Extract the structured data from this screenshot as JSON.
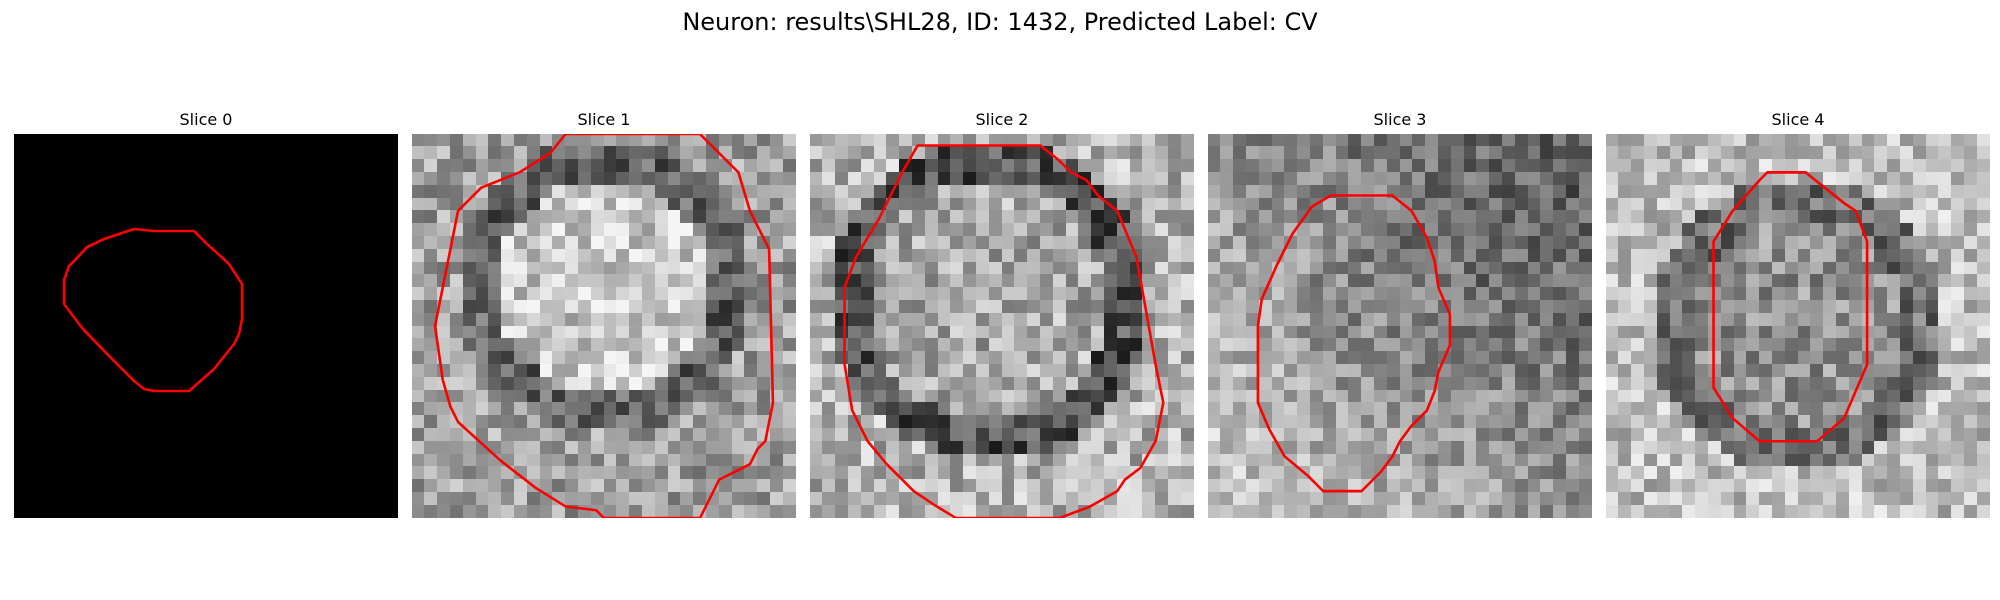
{
  "figure": {
    "title": "Neuron: results\\SHL28, ID: 1432, Predicted Label: CV"
  },
  "panels": [
    {
      "title": "Slice 0",
      "image": "black-background",
      "contour_color": "#ff0000"
    },
    {
      "title": "Slice 1",
      "image": "grayscale-microscopy-patch",
      "contour_color": "#ff0000"
    },
    {
      "title": "Slice 2",
      "image": "grayscale-microscopy-patch",
      "contour_color": "#ff0000"
    },
    {
      "title": "Slice 3",
      "image": "grayscale-microscopy-patch",
      "contour_color": "#ff0000"
    },
    {
      "title": "Slice 4",
      "image": "grayscale-microscopy-patch",
      "contour_color": "#ff0000"
    }
  ]
}
